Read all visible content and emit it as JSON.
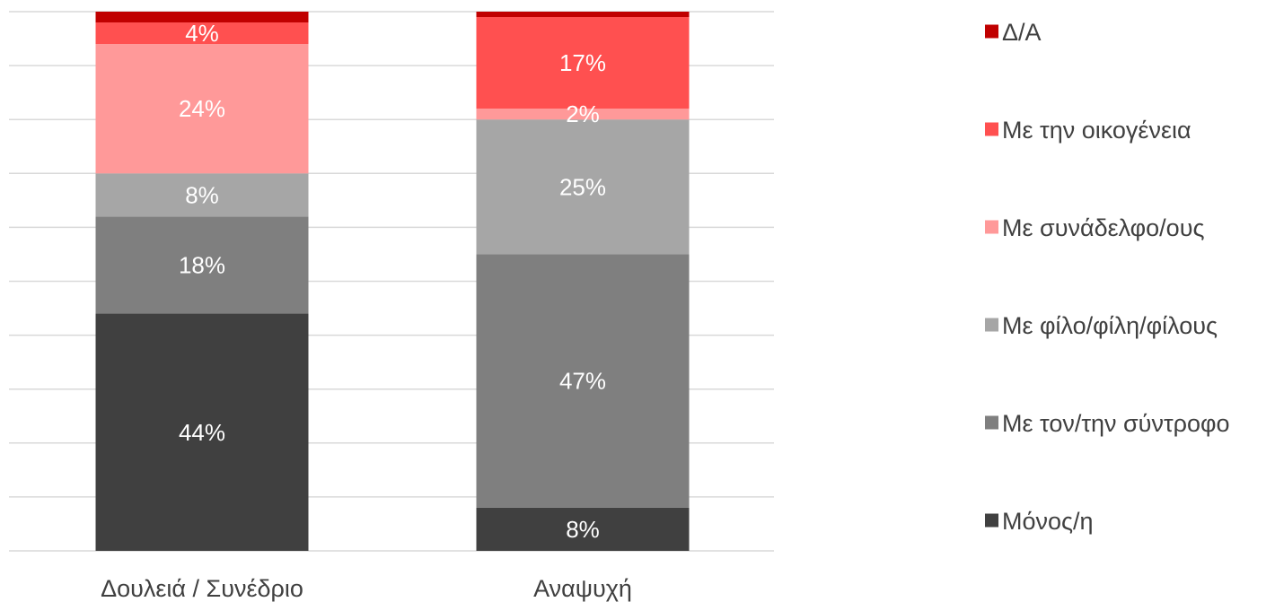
{
  "chart_data": {
    "type": "bar",
    "stacked": true,
    "normalized": true,
    "categories": [
      "Δουλειά / Συνέδριο",
      "Αναψυχή"
    ],
    "series": [
      {
        "name": "Μόνος/η",
        "color": "#404040",
        "values": [
          44,
          8
        ],
        "labels": [
          "44%",
          "8%"
        ]
      },
      {
        "name": "Με τον/την σύντροφο",
        "color": "#7f7f7f",
        "values": [
          18,
          47
        ],
        "labels": [
          "18%",
          "47%"
        ]
      },
      {
        "name": "Με φίλο/φίλη/φίλους",
        "color": "#a6a6a6",
        "values": [
          8,
          25
        ],
        "labels": [
          "8%",
          "25%"
        ]
      },
      {
        "name": "Με συνάδελφο/ους",
        "color": "#ff9999",
        "values": [
          24,
          2
        ],
        "labels": [
          "24%",
          "2%"
        ]
      },
      {
        "name": "Με την οικογένεια",
        "color": "#ff5050",
        "values": [
          4,
          17
        ],
        "labels": [
          "4%",
          "17%"
        ]
      },
      {
        "name": "Δ/Α",
        "color": "#c00000",
        "values": [
          2,
          1
        ],
        "labels": [
          "",
          ""
        ]
      }
    ],
    "ylim": [
      0,
      100
    ],
    "grid": true,
    "legend": "right"
  }
}
